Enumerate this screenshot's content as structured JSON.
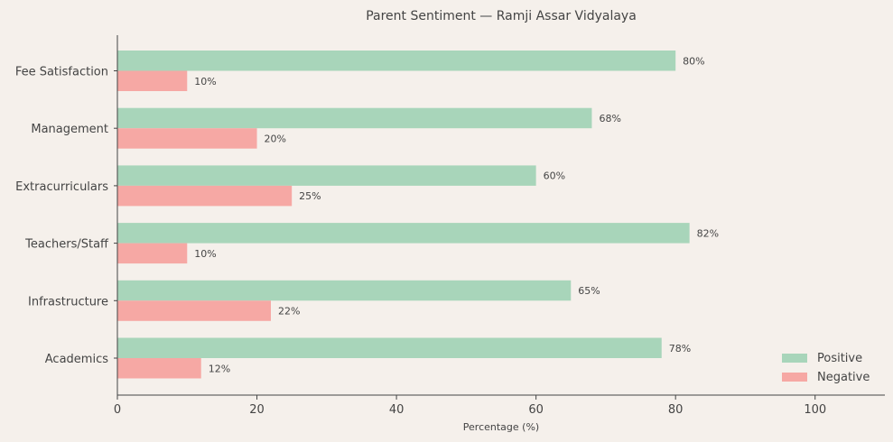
{
  "chart_data": {
    "type": "bar",
    "orientation": "horizontal",
    "title": "Parent Sentiment — Ramji Assar Vidyalaya",
    "xlabel": "Percentage (%)",
    "ylabel": "",
    "xlim": [
      0,
      110
    ],
    "xticks": [
      0,
      20,
      40,
      60,
      80,
      100
    ],
    "grid": false,
    "legend_position": "bottom-right",
    "categories": [
      "Academics",
      "Infrastructure",
      "Teachers/Staff",
      "Extracurriculars",
      "Management",
      "Fee Satisfaction"
    ],
    "series": [
      {
        "name": "Positive",
        "color": "#a8d5ba",
        "values": [
          78,
          65,
          82,
          60,
          68,
          80
        ]
      },
      {
        "name": "Negative",
        "color": "#f6a8a4",
        "values": [
          12,
          22,
          10,
          25,
          20,
          10
        ]
      }
    ],
    "value_label_suffix": "%"
  }
}
